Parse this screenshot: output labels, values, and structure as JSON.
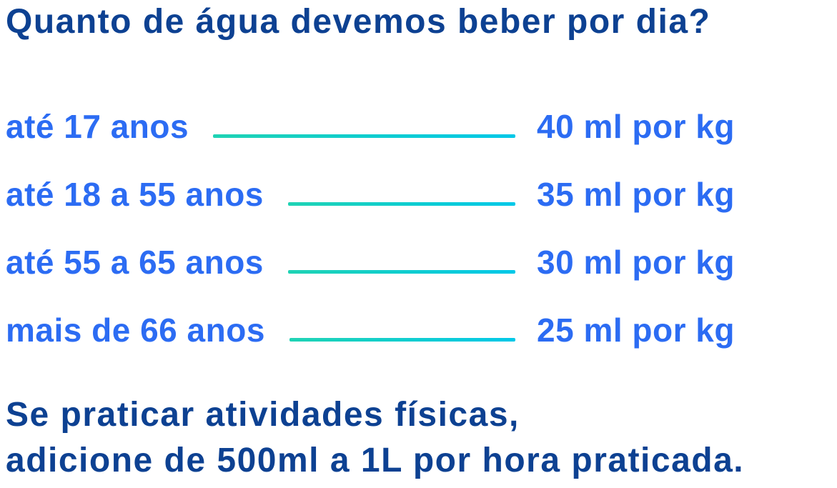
{
  "title": "Quanto de água devemos beber por dia?",
  "rows": [
    {
      "label": "até 17 anos",
      "value": "40 ml por kg"
    },
    {
      "label": "até 18 a 55 anos",
      "value": "35 ml por kg"
    },
    {
      "label": "até 55 a 65 anos",
      "value": "30 ml por kg"
    },
    {
      "label": "mais de 66 anos",
      "value": "25 ml por kg"
    }
  ],
  "footer": {
    "line1": "Se praticar atividades físicas,",
    "line2": "adicione de 500ml a 1L por hora praticada."
  },
  "colors": {
    "background": "#ffffff",
    "title_color": "#0d4192",
    "row_text_color": "#2c6cf3",
    "line_start": "#1fd3b4",
    "line_end": "#00c8e8"
  }
}
